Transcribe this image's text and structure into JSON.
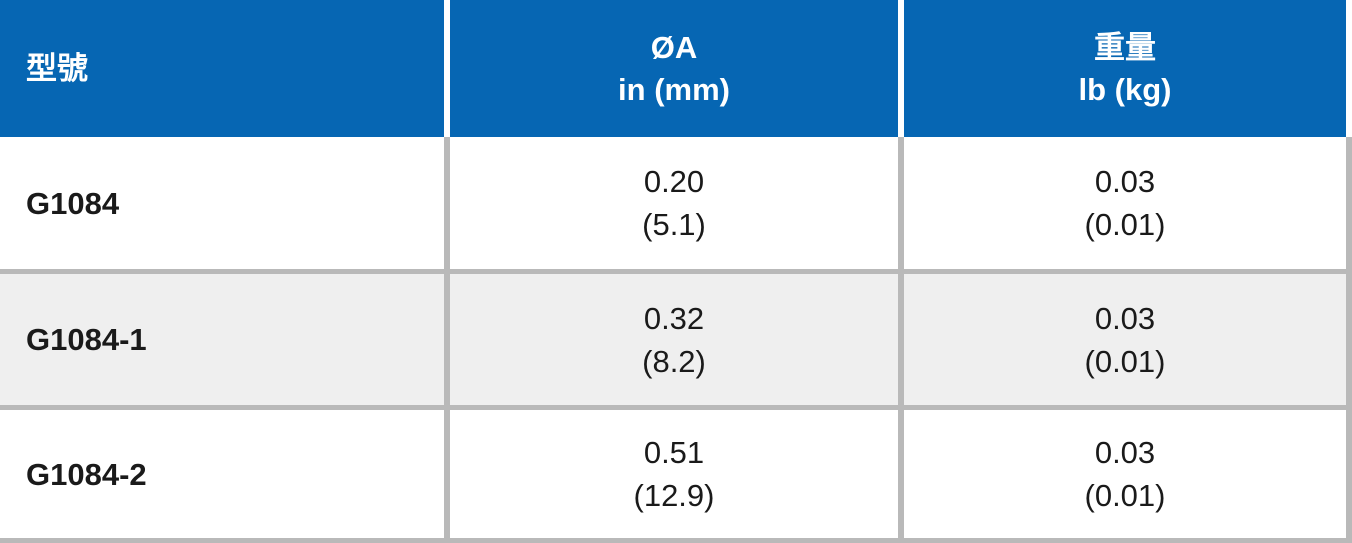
{
  "colors": {
    "header_bg": "#0666b3",
    "header_text": "#ffffff",
    "row_alt_bg": "#efefef",
    "separator": "#b9b9b9",
    "body_text": "#1a1a1a"
  },
  "table": {
    "headers": [
      {
        "id": "model",
        "lines": [
          "型號",
          ""
        ]
      },
      {
        "id": "diameter",
        "lines": [
          "ØA",
          "in (mm)"
        ]
      },
      {
        "id": "weight",
        "lines": [
          "重量",
          "lb (kg)"
        ]
      }
    ],
    "rows": [
      {
        "model": "G1084",
        "diameter_in": "0.20",
        "diameter_mm": "(5.1)",
        "weight_lb": "0.03",
        "weight_kg": "(0.01)"
      },
      {
        "model": "G1084-1",
        "diameter_in": "0.32",
        "diameter_mm": "(8.2)",
        "weight_lb": "0.03",
        "weight_kg": "(0.01)"
      },
      {
        "model": "G1084-2",
        "diameter_in": "0.51",
        "diameter_mm": "(12.9)",
        "weight_lb": "0.03",
        "weight_kg": "(0.01)"
      }
    ]
  }
}
